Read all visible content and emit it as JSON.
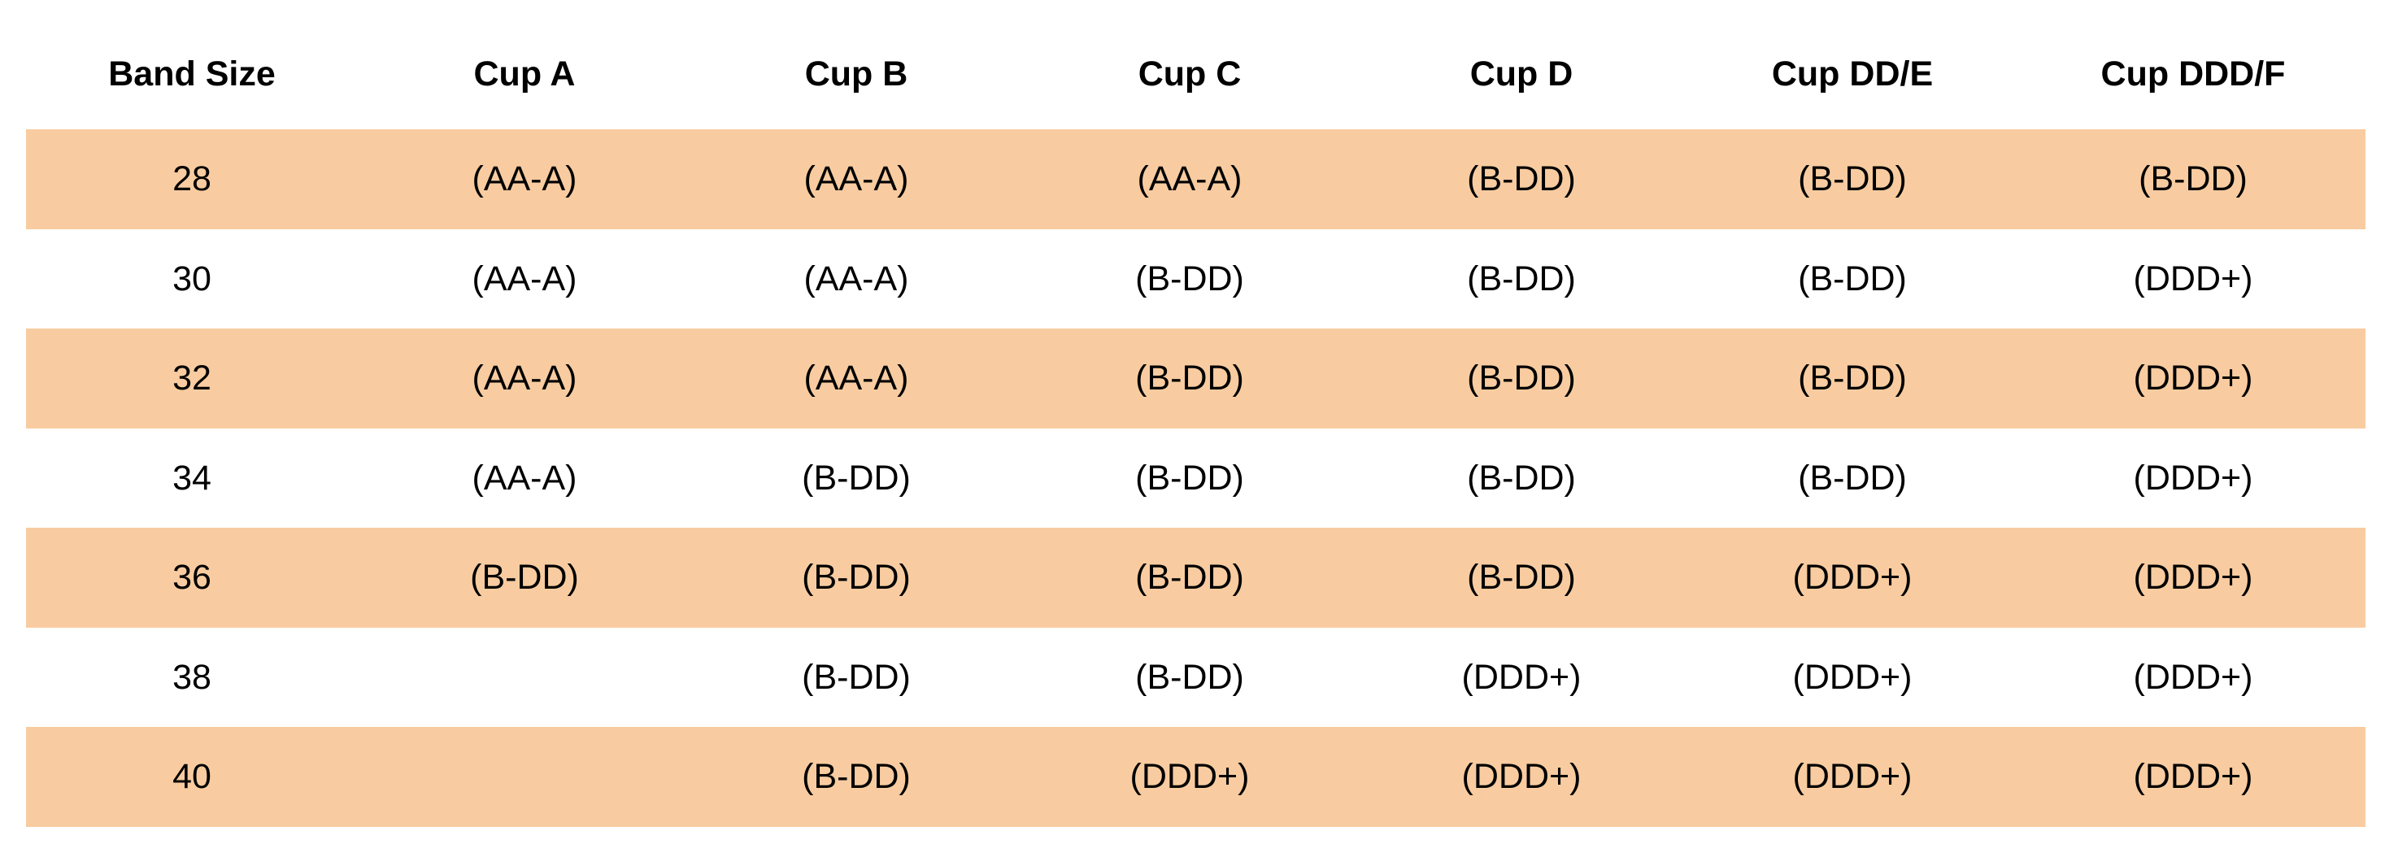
{
  "table": {
    "columns": [
      "Band Size",
      "Cup A",
      "Cup B",
      "Cup C",
      "Cup D",
      "Cup DD/E",
      "Cup DDD/F"
    ],
    "rows": [
      [
        "28",
        "(AA-A)",
        "(AA-A)",
        "(AA-A)",
        "(B-DD)",
        "(B-DD)",
        "(B-DD)"
      ],
      [
        "30",
        "(AA-A)",
        "(AA-A)",
        "(B-DD)",
        "(B-DD)",
        "(B-DD)",
        "(DDD+)"
      ],
      [
        "32",
        "(AA-A)",
        "(AA-A)",
        "(B-DD)",
        "(B-DD)",
        "(B-DD)",
        "(DDD+)"
      ],
      [
        "34",
        "(AA-A)",
        "(B-DD)",
        "(B-DD)",
        "(B-DD)",
        "(B-DD)",
        "(DDD+)"
      ],
      [
        "36",
        "(B-DD)",
        "(B-DD)",
        "(B-DD)",
        "(B-DD)",
        "(DDD+)",
        "(DDD+)"
      ],
      [
        "38",
        null,
        "(B-DD)",
        "(B-DD)",
        "(DDD+)",
        "(DDD+)",
        "(DDD+)"
      ],
      [
        "40",
        null,
        "(B-DD)",
        "(DDD+)",
        "(DDD+)",
        "(DDD+)",
        "(DDD+)"
      ]
    ]
  }
}
